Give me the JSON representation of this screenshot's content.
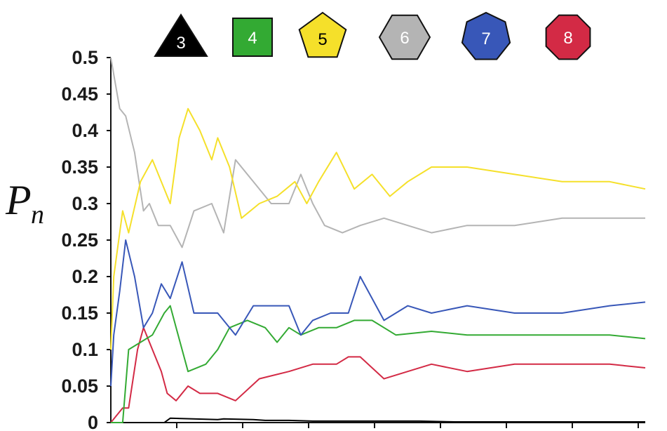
{
  "chart_data": {
    "type": "line",
    "title": "",
    "ylabel": {
      "main": "P",
      "sub": "n"
    },
    "xlabel": "",
    "xlim": [
      0,
      900
    ],
    "ylim": [
      0,
      0.5
    ],
    "yticks": [
      "0",
      "0.05",
      "0.1",
      "0.15",
      "0.2",
      "0.25",
      "0.3",
      "0.35",
      "0.4",
      "0.45",
      "0.5"
    ],
    "xtick_count": 8,
    "grid": false,
    "legend_position": "top",
    "series": [
      {
        "name": "3",
        "shape": "triangle",
        "color": "#000000",
        "label_color": "#ffffff",
        "x": [
          0,
          90,
          100,
          180,
          190,
          240,
          260,
          300,
          340,
          400,
          460,
          520,
          580,
          640,
          700,
          760,
          820,
          880,
          900
        ],
        "y": [
          0,
          0,
          0.006,
          0.004,
          0.005,
          0.004,
          0.003,
          0.003,
          0.002,
          0.002,
          0.002,
          0.002,
          0.001,
          0.001,
          0.001,
          0.001,
          0.001,
          0.001,
          0.001
        ]
      },
      {
        "name": "4",
        "shape": "square",
        "color": "#33aa33",
        "label_color": "#ffffff",
        "x": [
          0,
          20,
          30,
          50,
          70,
          90,
          100,
          110,
          130,
          160,
          180,
          200,
          230,
          260,
          280,
          300,
          320,
          350,
          380,
          410,
          440,
          480,
          540,
          600,
          680,
          760,
          840,
          900
        ],
        "y": [
          0,
          0,
          0.1,
          0.11,
          0.12,
          0.15,
          0.16,
          0.13,
          0.07,
          0.08,
          0.1,
          0.13,
          0.14,
          0.13,
          0.11,
          0.13,
          0.12,
          0.13,
          0.13,
          0.14,
          0.14,
          0.12,
          0.125,
          0.12,
          0.12,
          0.12,
          0.12,
          0.115
        ]
      },
      {
        "name": "5",
        "shape": "pentagon",
        "color": "#f5e02a",
        "label_color": "#000000",
        "x": [
          0,
          5,
          20,
          30,
          50,
          70,
          100,
          115,
          130,
          150,
          170,
          180,
          200,
          220,
          250,
          280,
          310,
          330,
          350,
          380,
          410,
          440,
          470,
          500,
          540,
          600,
          680,
          760,
          840,
          900
        ],
        "y": [
          0.1,
          0.2,
          0.29,
          0.26,
          0.33,
          0.36,
          0.3,
          0.39,
          0.43,
          0.4,
          0.36,
          0.39,
          0.35,
          0.28,
          0.3,
          0.31,
          0.33,
          0.3,
          0.33,
          0.37,
          0.32,
          0.34,
          0.31,
          0.33,
          0.35,
          0.35,
          0.34,
          0.33,
          0.33,
          0.32
        ]
      },
      {
        "name": "6",
        "shape": "hexagon",
        "color": "#b4b4b4",
        "label_color": "#ffffff",
        "x": [
          0,
          15,
          25,
          40,
          55,
          65,
          80,
          100,
          120,
          140,
          170,
          190,
          210,
          240,
          270,
          300,
          320,
          340,
          360,
          390,
          420,
          460,
          500,
          540,
          600,
          680,
          760,
          840,
          900
        ],
        "y": [
          0.5,
          0.43,
          0.42,
          0.37,
          0.29,
          0.3,
          0.27,
          0.27,
          0.24,
          0.29,
          0.3,
          0.26,
          0.36,
          0.33,
          0.3,
          0.3,
          0.34,
          0.3,
          0.27,
          0.26,
          0.27,
          0.28,
          0.27,
          0.26,
          0.27,
          0.27,
          0.28,
          0.28,
          0.28
        ]
      },
      {
        "name": "7",
        "shape": "heptagon",
        "color": "#3857b8",
        "label_color": "#ffffff",
        "x": [
          0,
          5,
          15,
          25,
          40,
          55,
          70,
          85,
          100,
          120,
          140,
          160,
          180,
          210,
          240,
          270,
          300,
          320,
          340,
          370,
          400,
          420,
          460,
          500,
          540,
          600,
          680,
          760,
          840,
          900
        ],
        "y": [
          0.05,
          0.12,
          0.18,
          0.25,
          0.2,
          0.13,
          0.15,
          0.19,
          0.17,
          0.22,
          0.15,
          0.15,
          0.15,
          0.12,
          0.16,
          0.16,
          0.16,
          0.12,
          0.14,
          0.15,
          0.15,
          0.2,
          0.14,
          0.16,
          0.15,
          0.16,
          0.15,
          0.15,
          0.16,
          0.165
        ]
      },
      {
        "name": "8",
        "shape": "octagon",
        "color": "#d32a45",
        "label_color": "#ffffff",
        "x": [
          0,
          20,
          30,
          45,
          55,
          70,
          85,
          95,
          110,
          130,
          150,
          180,
          210,
          250,
          300,
          340,
          380,
          400,
          420,
          460,
          500,
          540,
          600,
          680,
          760,
          840,
          900
        ],
        "y": [
          0,
          0.02,
          0.02,
          0.1,
          0.13,
          0.1,
          0.07,
          0.04,
          0.03,
          0.05,
          0.04,
          0.04,
          0.03,
          0.06,
          0.07,
          0.08,
          0.08,
          0.09,
          0.09,
          0.06,
          0.07,
          0.08,
          0.07,
          0.08,
          0.08,
          0.08,
          0.075
        ]
      }
    ]
  }
}
